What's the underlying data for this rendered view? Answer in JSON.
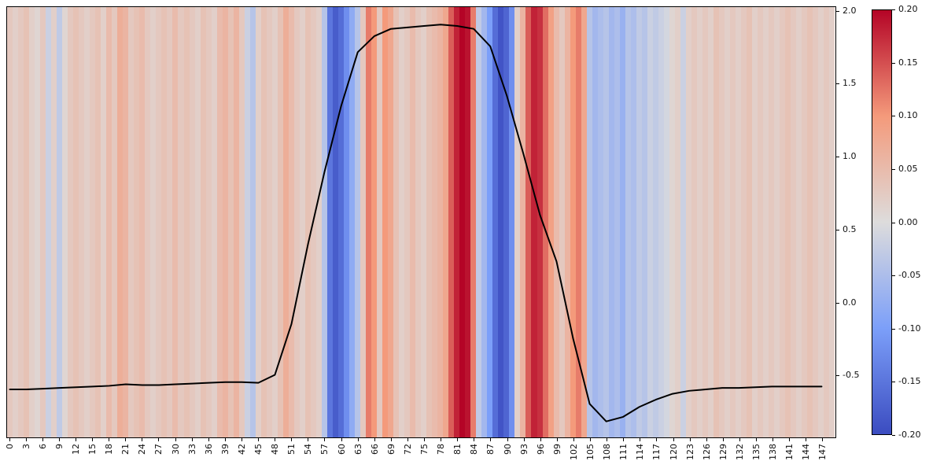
{
  "chart_data": {
    "type": "heatmap",
    "title": "",
    "xlabel": "",
    "ylabel": "",
    "grid": false,
    "legend": "none",
    "x_tick_labels": [
      "0",
      "3",
      "6",
      "9",
      "12",
      "15",
      "18",
      "21",
      "24",
      "27",
      "30",
      "33",
      "36",
      "39",
      "42",
      "45",
      "48",
      "51",
      "54",
      "57",
      "60",
      "63",
      "66",
      "69",
      "72",
      "75",
      "78",
      "81",
      "84",
      "87",
      "90",
      "93",
      "96",
      "99",
      "102",
      "105",
      "108",
      "111",
      "114",
      "117",
      "120",
      "123",
      "126",
      "129",
      "132",
      "135",
      "138",
      "141",
      "144",
      "147"
    ],
    "x_range": [
      0,
      150
    ],
    "y_right": {
      "ticks": [
        "2.0",
        "1.5",
        "1.0",
        "0.5",
        "0.0",
        "-0.5"
      ],
      "range_min": -0.93,
      "range_max": 2.03
    },
    "heatmap": {
      "n": 150,
      "vmin": -0.2,
      "vmax": 0.2,
      "values": [
        0.03,
        0.02,
        0.03,
        0.04,
        0.02,
        0.01,
        0.03,
        -0.02,
        0.02,
        -0.03,
        0.01,
        0.03,
        0.04,
        0.03,
        0.02,
        0.03,
        0.04,
        0.02,
        0.05,
        0.03,
        0.07,
        0.06,
        0.03,
        0.04,
        0.05,
        0.03,
        0.02,
        0.03,
        0.04,
        0.03,
        0.05,
        0.03,
        0.04,
        0.03,
        0.02,
        0.04,
        0.03,
        0.02,
        0.05,
        0.06,
        0.04,
        0.06,
        0.03,
        -0.02,
        -0.04,
        0.02,
        0.04,
        0.03,
        0.02,
        0.04,
        0.07,
        0.05,
        0.03,
        0.02,
        0.04,
        0.03,
        0.02,
        -0.04,
        -0.15,
        -0.18,
        -0.16,
        -0.12,
        -0.08,
        -0.04,
        0.03,
        0.12,
        0.1,
        0.03,
        0.1,
        0.08,
        0.04,
        0.02,
        0.03,
        0.05,
        0.03,
        0.02,
        0.04,
        0.05,
        0.06,
        0.08,
        0.14,
        0.18,
        0.2,
        0.19,
        0.12,
        -0.03,
        -0.06,
        -0.1,
        -0.16,
        -0.19,
        -0.17,
        -0.12,
        0.02,
        0.06,
        0.14,
        0.18,
        0.17,
        0.13,
        0.09,
        0.05,
        0.03,
        0.06,
        0.1,
        0.12,
        0.08,
        -0.04,
        -0.06,
        -0.05,
        -0.04,
        -0.06,
        -0.05,
        -0.07,
        -0.04,
        -0.05,
        -0.03,
        -0.04,
        -0.02,
        -0.03,
        -0.02,
        -0.01,
        0.01,
        0.02,
        -0.02,
        0.02,
        0.03,
        0.02,
        0.03,
        0.02,
        0.04,
        0.03,
        0.02,
        0.03,
        0.02,
        0.03,
        0.04,
        0.02,
        0.03,
        0.02,
        0.03,
        0.02,
        0.03,
        0.04,
        0.03,
        0.02,
        0.03,
        0.04,
        0.03,
        0.02,
        0.03,
        0.02
      ]
    },
    "line_series": {
      "name": "black-profile-line",
      "color": "#000000",
      "x": [
        0,
        3,
        6,
        9,
        12,
        15,
        18,
        21,
        24,
        27,
        30,
        33,
        36,
        39,
        42,
        45,
        48,
        51,
        54,
        57,
        60,
        63,
        66,
        69,
        72,
        75,
        78,
        81,
        84,
        87,
        90,
        93,
        96,
        99,
        102,
        105,
        108,
        111,
        114,
        117,
        120,
        123,
        126,
        129,
        132,
        135,
        138,
        141,
        144,
        147
      ],
      "values": [
        -0.6,
        -0.6,
        -0.595,
        -0.59,
        -0.585,
        -0.58,
        -0.575,
        -0.565,
        -0.57,
        -0.57,
        -0.565,
        -0.56,
        -0.555,
        -0.55,
        -0.55,
        -0.555,
        -0.5,
        -0.15,
        0.4,
        0.9,
        1.35,
        1.72,
        1.83,
        1.88,
        1.89,
        1.9,
        1.91,
        1.9,
        1.88,
        1.76,
        1.42,
        1.02,
        0.6,
        0.28,
        -0.25,
        -0.7,
        -0.82,
        -0.79,
        -0.72,
        -0.67,
        -0.63,
        -0.61,
        -0.6,
        -0.59,
        -0.59,
        -0.585,
        -0.58,
        -0.58,
        -0.58,
        -0.58
      ]
    },
    "colorbar": {
      "ticks": [
        "0.20",
        "0.15",
        "0.10",
        "0.05",
        "0.00",
        "-0.05",
        "-0.10",
        "-0.15",
        "-0.20"
      ],
      "vmin": -0.2,
      "vmax": 0.2,
      "colormap": "coolwarm",
      "color_anchors": [
        "#3b4cc0",
        "#7c9ff9",
        "#dddcdc",
        "#f49a7b",
        "#b40426"
      ]
    }
  }
}
